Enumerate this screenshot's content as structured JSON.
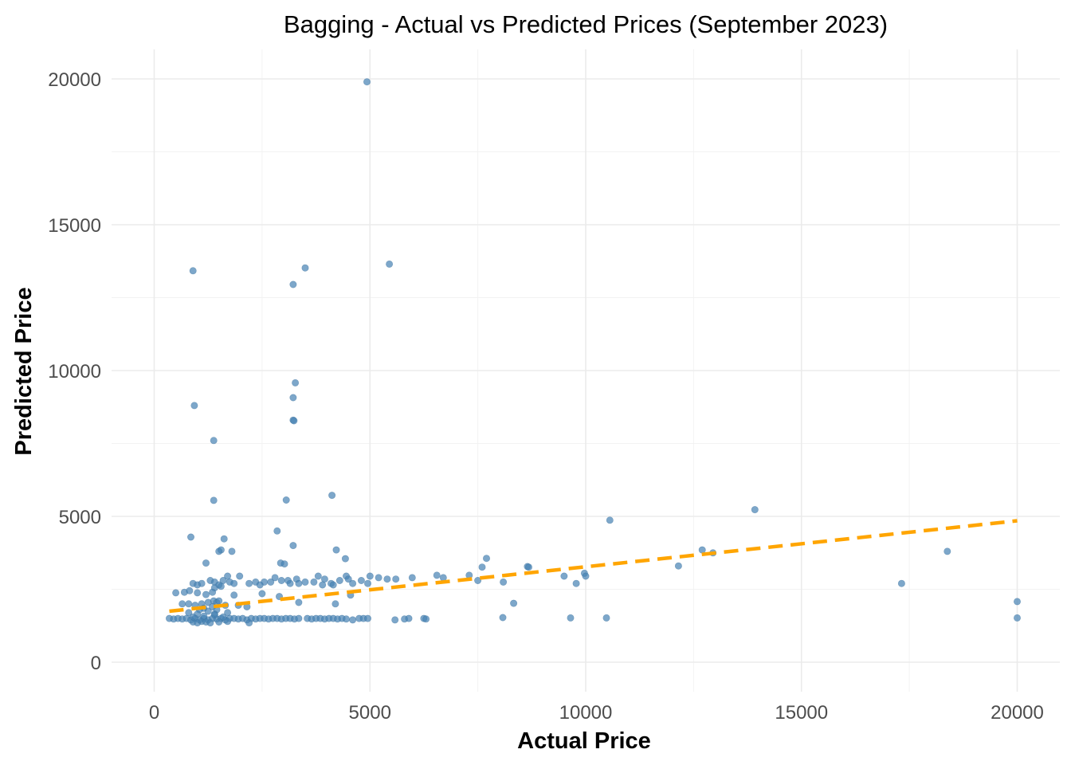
{
  "chart_data": {
    "type": "scatter",
    "title": "Bagging - Actual vs Predicted Prices (September 2023)",
    "xlabel": "Actual Price",
    "ylabel": "Predicted Price",
    "xlim": [
      -2000,
      21000
    ],
    "ylim": [
      -800,
      21000
    ],
    "x_ticks": [
      0,
      5000,
      10000,
      15000,
      20000
    ],
    "y_ticks": [
      0,
      5000,
      10000,
      15000,
      20000
    ],
    "x_tick_labels": [
      "0",
      "5000",
      "10000",
      "15000",
      "20000"
    ],
    "y_tick_labels": [
      "0",
      "5000",
      "10000",
      "15000",
      "20000"
    ],
    "grid": true,
    "point_color": "#4682b4",
    "trend_color": "#ffa500",
    "trend_line": {
      "style": "dashed",
      "x": [
        350,
        20000
      ],
      "y": [
        1750,
        4850
      ]
    },
    "points": [
      [
        4930,
        19900
      ],
      [
        5450,
        13650
      ],
      [
        900,
        13420
      ],
      [
        3500,
        13520
      ],
      [
        3220,
        12950
      ],
      [
        3270,
        9580
      ],
      [
        3220,
        9070
      ],
      [
        3220,
        8300
      ],
      [
        3240,
        8280
      ],
      [
        930,
        8800
      ],
      [
        1380,
        7600
      ],
      [
        1380,
        5550
      ],
      [
        3060,
        5560
      ],
      [
        4120,
        5720
      ],
      [
        13920,
        5230
      ],
      [
        10560,
        4870
      ],
      [
        2850,
        4500
      ],
      [
        850,
        4290
      ],
      [
        1620,
        4230
      ],
      [
        3220,
        4000
      ],
      [
        1550,
        3850
      ],
      [
        1500,
        3800
      ],
      [
        1800,
        3800
      ],
      [
        4220,
        3850
      ],
      [
        4430,
        3550
      ],
      [
        1200,
        3400
      ],
      [
        2930,
        3400
      ],
      [
        3020,
        3370
      ],
      [
        12700,
        3850
      ],
      [
        12950,
        3750
      ],
      [
        18380,
        3800
      ],
      [
        7600,
        3260
      ],
      [
        7700,
        3560
      ],
      [
        8650,
        3280
      ],
      [
        8680,
        3260
      ],
      [
        12150,
        3300
      ],
      [
        9500,
        2950
      ],
      [
        9970,
        3050
      ],
      [
        10000,
        2950
      ],
      [
        9780,
        2700
      ],
      [
        17320,
        2700
      ],
      [
        6550,
        2980
      ],
      [
        6700,
        2900
      ],
      [
        7300,
        2980
      ],
      [
        7500,
        2800
      ],
      [
        8090,
        2750
      ],
      [
        5000,
        2950
      ],
      [
        5200,
        2900
      ],
      [
        5400,
        2850
      ],
      [
        5600,
        2850
      ],
      [
        5980,
        2900
      ],
      [
        4800,
        2800
      ],
      [
        4950,
        2700
      ],
      [
        1700,
        2950
      ],
      [
        1980,
        2950
      ],
      [
        2350,
        2750
      ],
      [
        2550,
        2750
      ],
      [
        2700,
        2750
      ],
      [
        2800,
        2900
      ],
      [
        2950,
        2800
      ],
      [
        3100,
        2800
      ],
      [
        3300,
        2850
      ],
      [
        3500,
        2750
      ],
      [
        3700,
        2750
      ],
      [
        3800,
        2950
      ],
      [
        3950,
        2850
      ],
      [
        4100,
        2700
      ],
      [
        4300,
        2800
      ],
      [
        4450,
        2950
      ],
      [
        4500,
        2850
      ],
      [
        900,
        2700
      ],
      [
        1000,
        2650
      ],
      [
        1100,
        2700
      ],
      [
        1300,
        2800
      ],
      [
        1400,
        2750
      ],
      [
        1500,
        2650
      ],
      [
        1600,
        2800
      ],
      [
        1750,
        2750
      ],
      [
        1850,
        2700
      ],
      [
        1400,
        2550
      ],
      [
        1550,
        2600
      ],
      [
        2200,
        2700
      ],
      [
        2450,
        2650
      ],
      [
        3150,
        2700
      ],
      [
        3350,
        2700
      ],
      [
        3900,
        2650
      ],
      [
        4150,
        2650
      ],
      [
        4600,
        2700
      ],
      [
        500,
        2380
      ],
      [
        700,
        2400
      ],
      [
        820,
        2450
      ],
      [
        1000,
        2380
      ],
      [
        1200,
        2320
      ],
      [
        1350,
        2400
      ],
      [
        1850,
        2300
      ],
      [
        2500,
        2350
      ],
      [
        2900,
        2250
      ],
      [
        3350,
        2050
      ],
      [
        4550,
        2300
      ],
      [
        4200,
        2000
      ],
      [
        8330,
        2020
      ],
      [
        20000,
        2080
      ],
      [
        650,
        2000
      ],
      [
        800,
        2000
      ],
      [
        950,
        1950
      ],
      [
        1100,
        2000
      ],
      [
        1250,
        2050
      ],
      [
        1380,
        2100
      ],
      [
        1450,
        2050
      ],
      [
        1500,
        2100
      ],
      [
        1650,
        1950
      ],
      [
        1950,
        1950
      ],
      [
        2150,
        1900
      ],
      [
        1150,
        1850
      ],
      [
        1350,
        1900
      ],
      [
        1050,
        1800
      ],
      [
        1250,
        1750
      ],
      [
        1450,
        1800
      ],
      [
        800,
        1700
      ],
      [
        1000,
        1650
      ],
      [
        1400,
        1650
      ],
      [
        1700,
        1700
      ],
      [
        350,
        1500
      ],
      [
        450,
        1480
      ],
      [
        550,
        1500
      ],
      [
        650,
        1480
      ],
      [
        750,
        1500
      ],
      [
        850,
        1450
      ],
      [
        950,
        1500
      ],
      [
        1050,
        1450
      ],
      [
        1150,
        1500
      ],
      [
        1250,
        1450
      ],
      [
        1350,
        1500
      ],
      [
        1450,
        1480
      ],
      [
        1550,
        1500
      ],
      [
        1650,
        1450
      ],
      [
        1750,
        1500
      ],
      [
        1850,
        1500
      ],
      [
        1950,
        1480
      ],
      [
        2050,
        1500
      ],
      [
        2150,
        1450
      ],
      [
        2250,
        1500
      ],
      [
        2350,
        1480
      ],
      [
        2450,
        1500
      ],
      [
        2550,
        1500
      ],
      [
        2650,
        1480
      ],
      [
        2750,
        1500
      ],
      [
        2850,
        1500
      ],
      [
        2950,
        1480
      ],
      [
        3050,
        1500
      ],
      [
        3150,
        1500
      ],
      [
        3250,
        1480
      ],
      [
        3350,
        1500
      ],
      [
        3550,
        1500
      ],
      [
        3650,
        1480
      ],
      [
        3750,
        1500
      ],
      [
        3850,
        1500
      ],
      [
        3950,
        1480
      ],
      [
        4050,
        1500
      ],
      [
        4150,
        1500
      ],
      [
        4250,
        1480
      ],
      [
        4350,
        1500
      ],
      [
        4450,
        1480
      ],
      [
        4600,
        1450
      ],
      [
        4750,
        1500
      ],
      [
        4850,
        1500
      ],
      [
        4950,
        1500
      ],
      [
        5580,
        1450
      ],
      [
        5800,
        1480
      ],
      [
        5900,
        1500
      ],
      [
        6250,
        1500
      ],
      [
        6300,
        1480
      ],
      [
        8080,
        1530
      ],
      [
        9650,
        1520
      ],
      [
        10480,
        1520
      ],
      [
        20000,
        1520
      ],
      [
        900,
        1380
      ],
      [
        1000,
        1350
      ],
      [
        1100,
        1400
      ],
      [
        1200,
        1380
      ],
      [
        1300,
        1350
      ],
      [
        1500,
        1380
      ],
      [
        1700,
        1400
      ],
      [
        2200,
        1350
      ],
      [
        900,
        1550
      ],
      [
        1150,
        1580
      ],
      [
        1400,
        1620
      ],
      [
        1600,
        1550
      ]
    ]
  }
}
